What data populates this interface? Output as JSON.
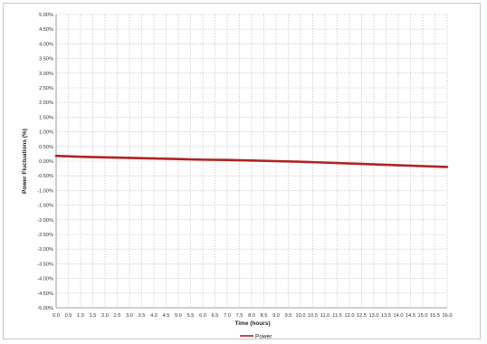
{
  "chart_data": {
    "type": "line",
    "title": "",
    "xlabel": "Time (hours)",
    "ylabel": "Power Fluctuations (%)",
    "xlim": [
      0,
      16
    ],
    "ylim": [
      -5,
      5
    ],
    "x_ticks": [
      "0.0",
      "0.5",
      "1.0",
      "1.5",
      "2.0",
      "2.5",
      "3.0",
      "3.5",
      "4.0",
      "4.5",
      "5.0",
      "5.5",
      "6.0",
      "6.5",
      "7.0",
      "7.5",
      "8.0",
      "8.5",
      "9.0",
      "9.5",
      "10.0",
      "10.5",
      "11.0",
      "11.5",
      "12.0",
      "12.5",
      "13.0",
      "13.5",
      "14.0",
      "14.5",
      "15.0",
      "15.5",
      "16.0"
    ],
    "y_ticks": [
      "5.00%",
      "4.50%",
      "4.00%",
      "3.50%",
      "3.00%",
      "2.50%",
      "2.00%",
      "1.50%",
      "1.00%",
      "0.50%",
      "0.00%",
      "-0.50%",
      "-1.00%",
      "-1.50%",
      "-2.00%",
      "-2.50%",
      "-3.00%",
      "-3.50%",
      "-4.00%",
      "-4.50%",
      "-5.00%"
    ],
    "grid": true,
    "legend_position": "bottom",
    "series": [
      {
        "name": "Power",
        "color": "#b22222",
        "x": [
          0,
          1,
          2,
          3,
          4,
          5,
          6,
          7,
          8,
          9,
          10,
          11,
          12,
          13,
          14,
          15,
          16
        ],
        "y": [
          0.18,
          0.15,
          0.13,
          0.11,
          0.09,
          0.07,
          0.05,
          0.04,
          0.02,
          0.0,
          -0.02,
          -0.05,
          -0.08,
          -0.11,
          -0.14,
          -0.17,
          -0.2
        ]
      }
    ]
  }
}
